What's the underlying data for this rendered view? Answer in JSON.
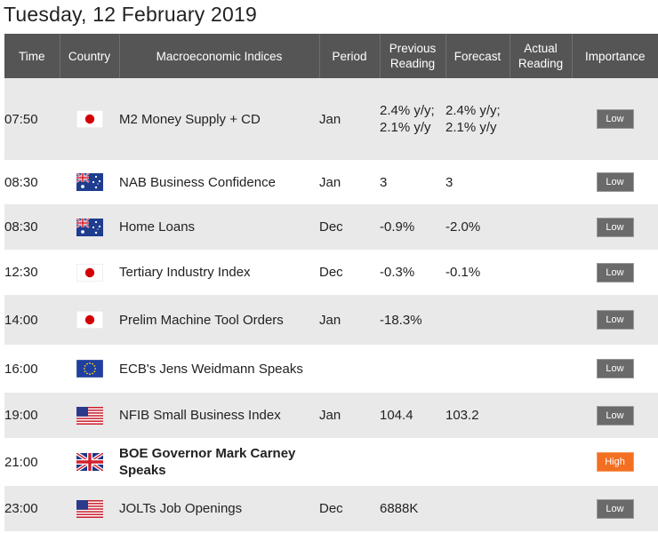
{
  "title": "Tuesday, 12 February 2019",
  "headers": {
    "time": "Time",
    "country": "Country",
    "indices": "Macroeconomic Indices",
    "period": "Period",
    "previous": "Previous Reading",
    "forecast": "Forecast",
    "actual": "Actual Reading",
    "importance": "Importance"
  },
  "colors": {
    "header_bg": "#555555",
    "row_alt": "#e9e9e9",
    "badge_low": "#6a6a6a",
    "badge_high": "#f36f21"
  },
  "rows": [
    {
      "time": "07:50",
      "country": "jp-flag-icon",
      "indicator": "M2 Money Supply + CD",
      "period": "Jan",
      "previous": "2.4% y/y; 2.1% y/y",
      "forecast": "2.4% y/y; 2.1% y/y",
      "actual": "",
      "importance": "Low"
    },
    {
      "time": "08:30",
      "country": "au-flag-icon",
      "indicator": "NAB Business Confidence",
      "period": "Jan",
      "previous": "3",
      "forecast": "3",
      "actual": "",
      "importance": "Low"
    },
    {
      "time": "08:30",
      "country": "au-flag-icon",
      "indicator": "Home Loans",
      "period": "Dec",
      "previous": "-0.9%",
      "forecast": "-2.0%",
      "actual": "",
      "importance": "Low"
    },
    {
      "time": "12:30",
      "country": "jp-flag-icon",
      "indicator": "Tertiary Industry Index",
      "period": "Dec",
      "previous": "-0.3%",
      "forecast": "-0.1%",
      "actual": "",
      "importance": "Low"
    },
    {
      "time": "14:00",
      "country": "jp-flag-icon",
      "indicator": "Prelim Machine Tool Orders",
      "period": "Jan",
      "previous": "-18.3%",
      "forecast": "",
      "actual": "",
      "importance": "Low"
    },
    {
      "time": "16:00",
      "country": "eu-flag-icon",
      "indicator": "ECB's Jens Weidmann Speaks",
      "period": "",
      "previous": "",
      "forecast": "",
      "actual": "",
      "importance": "Low"
    },
    {
      "time": "19:00",
      "country": "us-flag-icon",
      "indicator": "NFIB Small Business Index",
      "period": "Jan",
      "previous": "104.4",
      "forecast": "103.2",
      "actual": "",
      "importance": "Low"
    },
    {
      "time": "21:00",
      "country": "uk-flag-icon",
      "indicator": "BOE Governor Mark Carney Speaks",
      "period": "",
      "previous": "",
      "forecast": "",
      "actual": "",
      "importance": "High"
    },
    {
      "time": "23:00",
      "country": "us-flag-icon",
      "indicator": "JOLTs Job Openings",
      "period": "Dec",
      "previous": "6888K",
      "forecast": "",
      "actual": "",
      "importance": "Low"
    }
  ]
}
